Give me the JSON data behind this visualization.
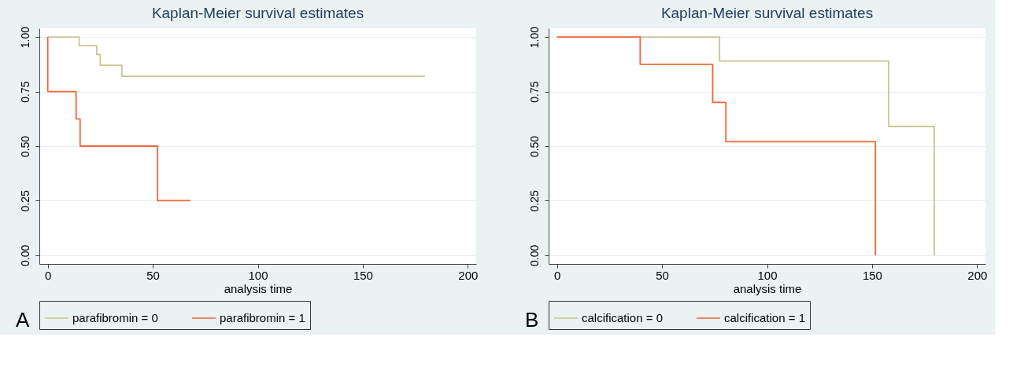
{
  "chart_data": [
    {
      "type": "step",
      "title": "Kaplan-Meier survival estimates",
      "xlabel": "analysis time",
      "legend": "bottom",
      "grid": "y",
      "annotations": [
        "A"
      ],
      "xlim": [
        -4,
        204
      ],
      "xticks": [
        0,
        50,
        100,
        150,
        200
      ],
      "ylim": [
        -0.04,
        1.04
      ],
      "yticks": [
        {
          "value": 0,
          "label": "0.00"
        },
        {
          "value": 0.25,
          "label": "0.25"
        },
        {
          "value": 0.5,
          "label": "0.50"
        },
        {
          "value": 0.75,
          "label": "0.75"
        },
        {
          "value": 1,
          "label": "1.00"
        }
      ],
      "series": [
        {
          "name": "parafibromin = 0",
          "color": "#c9c592",
          "x": [
            0,
            15,
            23.3,
            25,
            35.3,
            179.6
          ],
          "values": [
            1,
            0.96,
            0.92,
            0.87,
            0.82,
            0.82
          ]
        },
        {
          "name": "parafibromin = 1",
          "color": "#f4663a",
          "x": [
            0,
            0,
            13.5,
            15.4,
            52.3,
            67.9
          ],
          "values": [
            1,
            0.75,
            0.625,
            0.5,
            0.25,
            0.25
          ]
        }
      ]
    },
    {
      "type": "step",
      "title": "Kaplan-Meier survival estimates",
      "xlabel": "analysis time",
      "legend": "bottom",
      "grid": "y",
      "annotations": [
        "B"
      ],
      "xlim": [
        -4,
        204
      ],
      "xticks": [
        0,
        50,
        100,
        150,
        200
      ],
      "ylim": [
        -0.04,
        1.04
      ],
      "yticks": [
        {
          "value": 0,
          "label": "0.00"
        },
        {
          "value": 0.25,
          "label": "0.25"
        },
        {
          "value": 0.5,
          "label": "0.50"
        },
        {
          "value": 0.75,
          "label": "0.75"
        },
        {
          "value": 1,
          "label": "1.00"
        }
      ],
      "series": [
        {
          "name": "calcification = 0",
          "color": "#c9c592",
          "x": [
            0,
            77.4,
            157.9,
            179.6
          ],
          "values": [
            1,
            0.89,
            0.59,
            0
          ]
        },
        {
          "name": "calcification = 1",
          "color": "#f4663a",
          "x": [
            0,
            39.6,
            74.1,
            80.4,
            151.6
          ],
          "values": [
            1,
            0.875,
            0.7,
            0.52,
            0
          ]
        }
      ]
    }
  ]
}
